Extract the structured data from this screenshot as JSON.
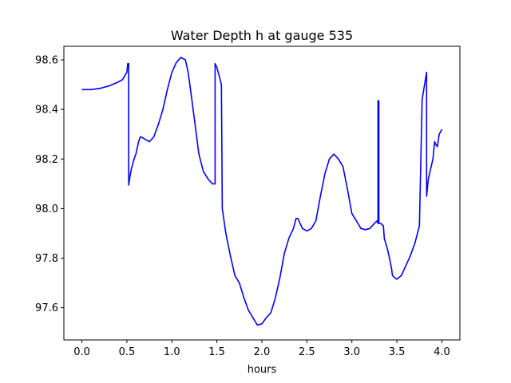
{
  "chart_data": {
    "type": "line",
    "title": "Water Depth h at gauge 535",
    "xlabel": "hours",
    "ylabel": "",
    "xlim": [
      -0.2,
      4.2
    ],
    "ylim": [
      97.47,
      98.655
    ],
    "x_ticks": [
      {
        "value": 0.0,
        "label": "0.0"
      },
      {
        "value": 0.5,
        "label": "0.5"
      },
      {
        "value": 1.0,
        "label": "1.0"
      },
      {
        "value": 1.5,
        "label": "1.5"
      },
      {
        "value": 2.0,
        "label": "2.0"
      },
      {
        "value": 2.5,
        "label": "2.5"
      },
      {
        "value": 3.0,
        "label": "3.0"
      },
      {
        "value": 3.5,
        "label": "3.5"
      },
      {
        "value": 4.0,
        "label": "4.0"
      }
    ],
    "y_ticks": [
      {
        "value": 97.6,
        "label": "97.6"
      },
      {
        "value": 97.8,
        "label": "97.8"
      },
      {
        "value": 98.0,
        "label": "98.0"
      },
      {
        "value": 98.2,
        "label": "98.2"
      },
      {
        "value": 98.4,
        "label": "98.4"
      },
      {
        "value": 98.6,
        "label": "98.6"
      }
    ],
    "grid": false,
    "legend": "none",
    "series": [
      {
        "color": "#0000ff",
        "x": [
          0.0,
          0.1,
          0.2,
          0.3,
          0.4,
          0.45,
          0.5,
          0.51,
          0.52,
          0.52,
          0.53,
          0.55,
          0.58,
          0.6,
          0.63,
          0.65,
          0.68,
          0.7,
          0.75,
          0.8,
          0.85,
          0.9,
          0.95,
          1.0,
          1.05,
          1.1,
          1.15,
          1.18,
          1.2,
          1.25,
          1.3,
          1.35,
          1.4,
          1.45,
          1.48,
          1.48,
          1.5,
          1.53,
          1.55,
          1.56,
          1.6,
          1.65,
          1.7,
          1.75,
          1.8,
          1.85,
          1.9,
          1.95,
          2.0,
          2.05,
          2.1,
          2.15,
          2.2,
          2.25,
          2.3,
          2.35,
          2.38,
          2.4,
          2.45,
          2.5,
          2.55,
          2.6,
          2.65,
          2.7,
          2.75,
          2.8,
          2.85,
          2.9,
          2.95,
          3.0,
          3.05,
          3.1,
          3.15,
          3.2,
          3.25,
          3.28,
          3.29,
          3.29,
          3.3,
          3.3,
          3.32,
          3.35,
          3.36,
          3.4,
          3.44,
          3.45,
          3.48,
          3.5,
          3.55,
          3.6,
          3.65,
          3.7,
          3.75,
          3.78,
          3.78,
          3.83,
          3.83,
          3.85,
          3.9,
          3.92,
          3.93,
          3.95,
          3.97,
          4.0
        ],
        "y": [
          98.48,
          98.48,
          98.485,
          98.495,
          98.51,
          98.52,
          98.55,
          98.585,
          98.585,
          98.095,
          98.12,
          98.16,
          98.2,
          98.22,
          98.27,
          98.29,
          98.285,
          98.28,
          98.27,
          98.29,
          98.34,
          98.4,
          98.48,
          98.55,
          98.59,
          98.61,
          98.6,
          98.55,
          98.5,
          98.36,
          98.22,
          98.15,
          98.12,
          98.1,
          98.1,
          98.585,
          98.57,
          98.53,
          98.5,
          98.0,
          97.9,
          97.81,
          97.73,
          97.7,
          97.64,
          97.59,
          97.56,
          97.53,
          97.535,
          97.56,
          97.58,
          97.64,
          97.72,
          97.82,
          97.88,
          97.92,
          97.96,
          97.96,
          97.92,
          97.91,
          97.92,
          97.95,
          98.05,
          98.14,
          98.2,
          98.22,
          98.2,
          98.17,
          98.08,
          97.98,
          97.95,
          97.92,
          97.915,
          97.92,
          97.94,
          97.95,
          97.94,
          98.435,
          98.435,
          97.94,
          97.94,
          97.93,
          97.88,
          97.83,
          97.76,
          97.73,
          97.72,
          97.715,
          97.73,
          97.77,
          97.81,
          97.86,
          97.93,
          98.44,
          98.44,
          98.55,
          98.05,
          98.12,
          98.2,
          98.27,
          98.26,
          98.25,
          98.3,
          98.32
        ]
      }
    ]
  }
}
